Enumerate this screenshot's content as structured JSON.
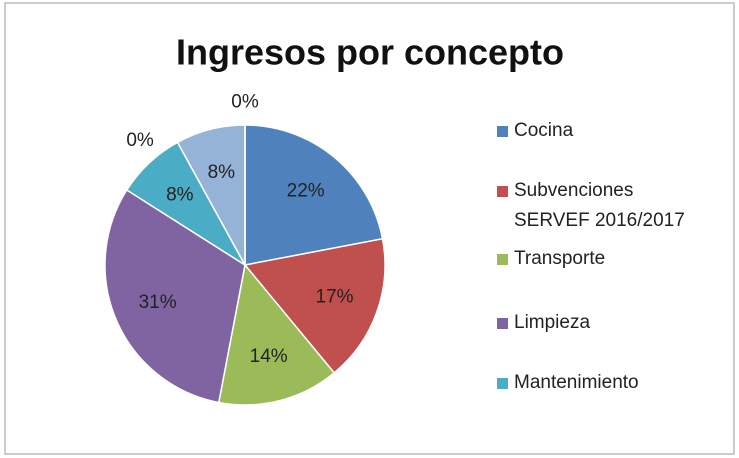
{
  "chart_data": {
    "type": "pie",
    "title": "Ingresos por concepto",
    "categories": [
      "Cocina",
      "Subvenciones SERVEF 2016/2017",
      "Transporte",
      "Limpieza",
      "Mantenimiento",
      null,
      null,
      null
    ],
    "values": [
      22,
      17,
      14,
      31,
      8,
      0,
      8,
      0
    ],
    "value_labels": [
      "22%",
      "17%",
      "14%",
      "31%",
      "8%",
      "0%",
      "8%",
      "0%"
    ],
    "colors": [
      "#4f81bd",
      "#c0504d",
      "#9bbb59",
      "#8064a2",
      "#4bacc6",
      "#f79646",
      "#95b3d7",
      "#d99694"
    ],
    "legend": "right"
  }
}
